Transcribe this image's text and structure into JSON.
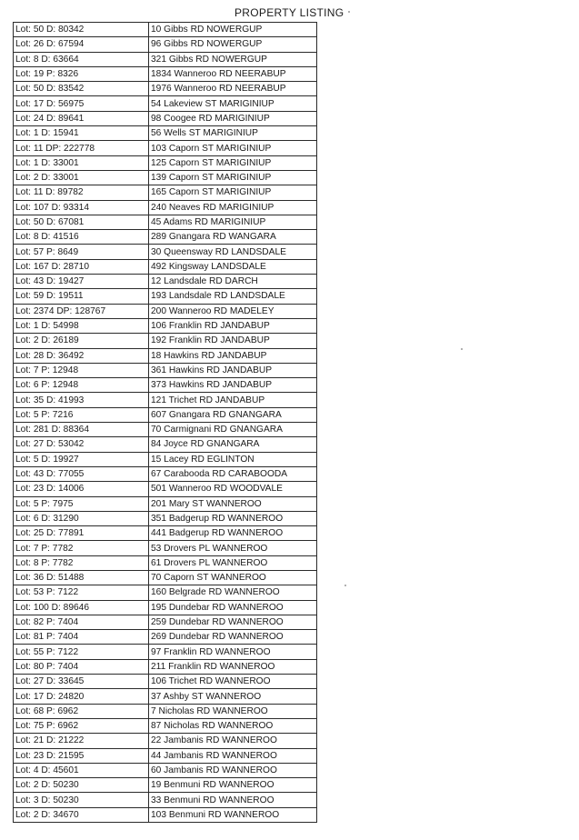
{
  "title": "PROPERTY LISTING",
  "rows": [
    {
      "lot": "Lot: 50 D: 80342",
      "address": "10 Gibbs RD NOWERGUP"
    },
    {
      "lot": "Lot: 26 D: 67594",
      "address": "96 Gibbs RD NOWERGUP"
    },
    {
      "lot": "Lot: 8 D: 63664",
      "address": "321 Gibbs RD NOWERGUP"
    },
    {
      "lot": "Lot: 19 P: 8326",
      "address": "1834 Wanneroo RD NEERABUP"
    },
    {
      "lot": "Lot: 50 D: 83542",
      "address": "1976 Wanneroo RD NEERABUP"
    },
    {
      "lot": "Lot: 17 D: 56975",
      "address": "54 Lakeview ST MARIGINIUP"
    },
    {
      "lot": "Lot: 24 D: 89641",
      "address": "98 Coogee RD MARIGINIUP"
    },
    {
      "lot": "Lot: 1 D: 15941",
      "address": "56 Wells ST MARIGINIUP"
    },
    {
      "lot": "Lot: 11 DP: 222778",
      "address": "103 Caporn ST MARIGINIUP"
    },
    {
      "lot": "Lot: 1 D: 33001",
      "address": "125 Caporn ST MARIGINIUP"
    },
    {
      "lot": "Lot: 2 D: 33001",
      "address": "139 Caporn ST MARIGINIUP"
    },
    {
      "lot": "Lot: 11 D: 89782",
      "address": "165 Caporn ST MARIGINIUP"
    },
    {
      "lot": "Lot: 107 D: 93314",
      "address": "240 Neaves RD MARIGINIUP"
    },
    {
      "lot": "Lot: 50 D: 67081",
      "address": "45 Adams RD MARIGINIUP"
    },
    {
      "lot": "Lot: 8 D: 41516",
      "address": "289 Gnangara RD WANGARA"
    },
    {
      "lot": "Lot: 57 P: 8649",
      "address": "30 Queensway RD LANDSDALE"
    },
    {
      "lot": "Lot: 167 D: 28710",
      "address": "492 Kingsway LANDSDALE"
    },
    {
      "lot": "Lot: 43 D: 19427",
      "address": "12 Landsdale RD DARCH"
    },
    {
      "lot": "Lot: 59 D: 19511",
      "address": "193 Landsdale RD LANDSDALE"
    },
    {
      "lot": "Lot: 2374 DP: 128767",
      "address": "200 Wanneroo RD MADELEY"
    },
    {
      "lot": "Lot: 1 D: 54998",
      "address": "106 Franklin RD JANDABUP"
    },
    {
      "lot": "Lot: 2 D: 26189",
      "address": "192 Franklin RD JANDABUP"
    },
    {
      "lot": "Lot: 28 D: 36492",
      "address": "18 Hawkins RD JANDABUP"
    },
    {
      "lot": "Lot: 7 P: 12948",
      "address": "361 Hawkins RD JANDABUP"
    },
    {
      "lot": "Lot: 6 P: 12948",
      "address": "373 Hawkins RD JANDABUP"
    },
    {
      "lot": "Lot: 35 D: 41993",
      "address": "121 Trichet RD JANDABUP"
    },
    {
      "lot": "Lot: 5 P: 7216",
      "address": "607 Gnangara RD GNANGARA"
    },
    {
      "lot": "Lot: 281 D: 88364",
      "address": "70 Carmignani RD GNANGARA"
    },
    {
      "lot": "Lot: 27 D: 53042",
      "address": "84 Joyce RD GNANGARA"
    },
    {
      "lot": "Lot: 5 D: 19927",
      "address": "15 Lacey RD EGLINTON"
    },
    {
      "lot": "Lot: 43 D: 77055",
      "address": "67 Carabooda RD CARABOODA"
    },
    {
      "lot": "Lot: 23 D: 14006",
      "address": "501 Wanneroo RD WOODVALE"
    },
    {
      "lot": "Lot: 5 P: 7975",
      "address": "201 Mary ST WANNEROO"
    },
    {
      "lot": "Lot: 6 D: 31290",
      "address": "351 Badgerup RD WANNEROO"
    },
    {
      "lot": "Lot: 25 D: 77891",
      "address": "441 Badgerup RD WANNEROO"
    },
    {
      "lot": "Lot: 7 P: 7782",
      "address": "53 Drovers PL WANNEROO"
    },
    {
      "lot": "Lot: 8 P: 7782",
      "address": "61 Drovers PL WANNEROO"
    },
    {
      "lot": "Lot: 36 D: 51488",
      "address": "70 Caporn ST WANNEROO"
    },
    {
      "lot": "Lot: 53 P: 7122",
      "address": "160 Belgrade RD WANNEROO"
    },
    {
      "lot": "Lot: 100 D: 89646",
      "address": "195 Dundebar RD WANNEROO"
    },
    {
      "lot": "Lot: 82 P: 7404",
      "address": "259 Dundebar RD WANNEROO"
    },
    {
      "lot": "Lot: 81 P: 7404",
      "address": "269 Dundebar RD WANNEROO"
    },
    {
      "lot": "Lot: 55 P: 7122",
      "address": "97 Franklin RD WANNEROO"
    },
    {
      "lot": "Lot: 80 P: 7404",
      "address": "211 Franklin RD WANNEROO"
    },
    {
      "lot": "Lot: 27 D: 33645",
      "address": "106 Trichet RD WANNEROO"
    },
    {
      "lot": "Lot: 17 D: 24820",
      "address": "37 Ashby ST WANNEROO"
    },
    {
      "lot": "Lot: 68 P: 6962",
      "address": "7 Nicholas RD WANNEROO"
    },
    {
      "lot": "Lot: 75 P: 6962",
      "address": "87 Nicholas RD WANNEROO"
    },
    {
      "lot": "Lot: 21 D: 21222",
      "address": "22 Jambanis RD WANNEROO"
    },
    {
      "lot": "Lot: 23 D: 21595",
      "address": "44 Jambanis RD WANNEROO"
    },
    {
      "lot": "Lot: 4 D: 45601",
      "address": "60 Jambanis RD WANNEROO"
    },
    {
      "lot": "Lot: 2 D: 50230",
      "address": "19 Benmuni RD WANNEROO"
    },
    {
      "lot": "Lot: 3 D: 50230",
      "address": "33 Benmuni RD WANNEROO"
    },
    {
      "lot": "Lot: 2 D: 34670",
      "address": "103 Benmuni RD WANNEROO"
    }
  ]
}
